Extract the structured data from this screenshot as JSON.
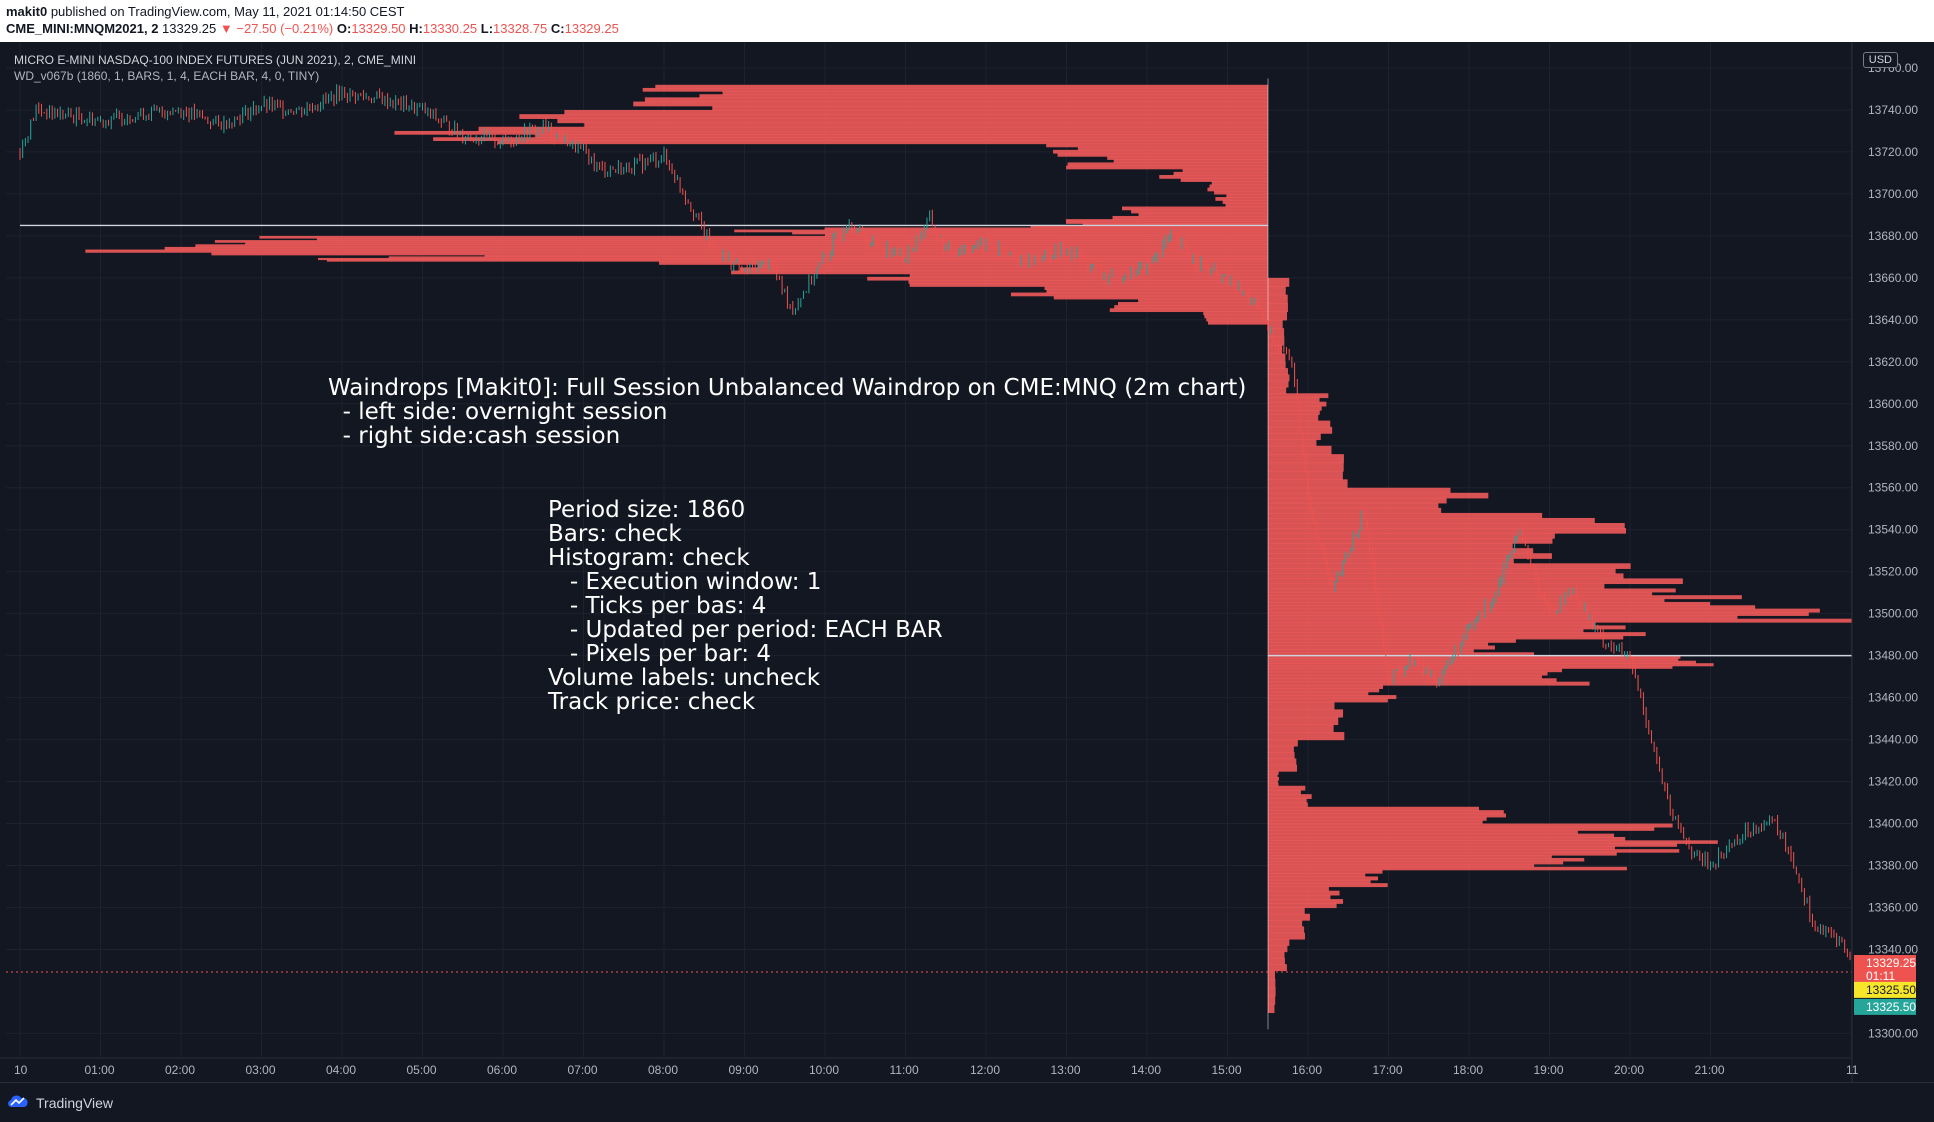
{
  "header": {
    "publisher": "makit0",
    "published_text": "published on TradingView.com, May 11, 2021 01:14:50 CEST",
    "symbol": "CME_MINI:MNQM2021, 2",
    "last_price": "13329.25",
    "change": "▼ −27.50 (−0.21%)",
    "o_label": "O:",
    "o_value": "13329.50",
    "h_label": "H:",
    "h_value": "13330.25",
    "l_label": "L:",
    "l_value": "13328.75",
    "c_label": "C:",
    "c_value": "13329.25"
  },
  "legend": {
    "instrument": "MICRO E-MINI NASDAQ-100 INDEX FUTURES (JUN 2021), 2, CME_MINI",
    "indicator": "WD_v067b (1860, 1, BARS, 1, 4, EACH BAR, 4, 0, TINY)"
  },
  "currency_badge": "USD",
  "annotation_title": "Waindrops [Makit0]: Full Session Unbalanced Waindrop on CME:MNQ (2m chart)\n  - left side: overnight session\n  - right side:cash session",
  "annotation_settings": "Period size: 1860\nBars: check\nHistogram: check\n   - Execution window: 1\n   - Ticks per bas: 4\n   - Updated per period: EACH BAR\n   - Pixels per bar: 4\nVolume labels: uncheck\nTrack price: check",
  "footer": {
    "brand": "TradingView"
  },
  "price_badges": [
    {
      "text": "13329.25",
      "bg": "#ef5350",
      "fg": "#ffffff"
    },
    {
      "text": "01:11",
      "bg": "#ef5350",
      "fg": "#ffffff"
    },
    {
      "text": "13325.50",
      "bg": "#f5e62a",
      "fg": "#131722"
    },
    {
      "text": "13325.50",
      "bg": "#26a69a",
      "fg": "#ffffff"
    }
  ],
  "colors": {
    "histogram": "#f05a5a",
    "up": "#26a69a",
    "down": "#ef5350",
    "poc_line": "#d1d4dc",
    "background": "#131722"
  },
  "chart_data": {
    "type": "line",
    "y_axis": {
      "labels": [
        "13760.00",
        "13740.00",
        "13720.00",
        "13700.00",
        "13680.00",
        "13660.00",
        "13640.00",
        "13620.00",
        "13600.00",
        "13580.00",
        "13560.00",
        "13540.00",
        "13520.00",
        "13500.00",
        "13480.00",
        "13460.00",
        "13440.00",
        "13420.00",
        "13400.00",
        "13380.00",
        "13360.00",
        "13340.00",
        "13300.00"
      ],
      "values": [
        13760,
        13740,
        13720,
        13700,
        13680,
        13660,
        13640,
        13620,
        13600,
        13580,
        13560,
        13540,
        13520,
        13500,
        13480,
        13460,
        13440,
        13420,
        13400,
        13380,
        13360,
        13340,
        13300
      ],
      "range": [
        13294,
        13770
      ]
    },
    "x_axis": {
      "labels": [
        "10",
        "01:00",
        "02:00",
        "03:00",
        "04:00",
        "05:00",
        "06:00",
        "07:00",
        "08:00",
        "09:00",
        "10:00",
        "11:00",
        "12:00",
        "13:00",
        "14:00",
        "15:00",
        "16:00",
        "17:00",
        "18:00",
        "19:00",
        "20:00",
        "21:00",
        "11"
      ],
      "hours": [
        0,
        1,
        2,
        3,
        4,
        5,
        6,
        7,
        8,
        9,
        10,
        11,
        12,
        13,
        14,
        15,
        16,
        17,
        18,
        19,
        20,
        21,
        22.75
      ]
    },
    "price_series": {
      "name": "MNQM2021",
      "hours": [
        0,
        0.2,
        0.5,
        1,
        1.5,
        2,
        2.5,
        3,
        3.5,
        4,
        4.5,
        5,
        5.5,
        6,
        6.5,
        7,
        7.2,
        7.5,
        8,
        8.3,
        8.6,
        9,
        9.3,
        9.6,
        10,
        10.3,
        10.5,
        11,
        11.3,
        11.5,
        12,
        12.5,
        13,
        13.5,
        14,
        14.3,
        14.6,
        15,
        15.3,
        15.5,
        15.8,
        16,
        16.3,
        16.7,
        17,
        17.3,
        17.6,
        18,
        18.3,
        18.6,
        19,
        19.3,
        19.6,
        20,
        20.2,
        20.5,
        20.8,
        21,
        21.3,
        21.6,
        21.8,
        22,
        22.3,
        22.6,
        22.8
      ],
      "prices": [
        13720,
        13740,
        13738,
        13735,
        13738,
        13740,
        13733,
        13742,
        13740,
        13748,
        13745,
        13740,
        13728,
        13725,
        13732,
        13720,
        13712,
        13712,
        13718,
        13697,
        13674,
        13663,
        13668,
        13645,
        13670,
        13688,
        13678,
        13670,
        13688,
        13673,
        13676,
        13668,
        13674,
        13660,
        13665,
        13680,
        13668,
        13658,
        13650,
        13635,
        13620,
        13555,
        13510,
        13548,
        13468,
        13478,
        13468,
        13492,
        13508,
        13540,
        13500,
        13512,
        13490,
        13478,
        13450,
        13405,
        13385,
        13380,
        13392,
        13400,
        13400,
        13385,
        13350,
        13345,
        13330
      ]
    },
    "poc_left": 13685,
    "poc_right": 13480,
    "last_price": 13329.25
  }
}
